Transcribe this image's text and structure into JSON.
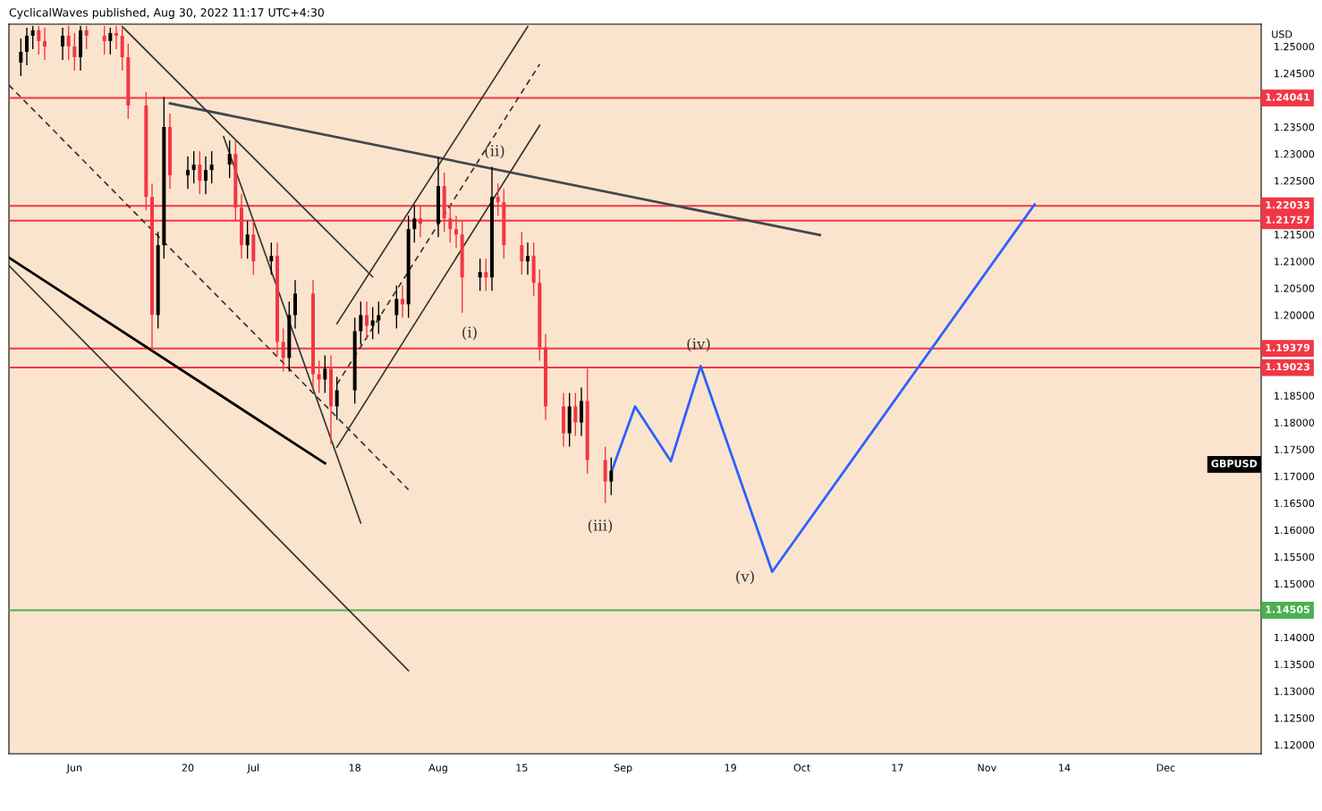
{
  "chart_data": {
    "type": "candlestick",
    "annotations": [
      "CyclicalWaves published, Aug 30, 2022 11:17 UTC+4:30",
      "USD",
      "GBPUSD",
      "(i)",
      "(ii)",
      "(iii)",
      "(iv)",
      "(v)"
    ],
    "xlim": [
      "2022-05-21",
      "2022-12-17"
    ],
    "xticks": [
      {
        "value": "2022-06-01",
        "label": "Jun"
      },
      {
        "value": "2022-06-20",
        "label": "20"
      },
      {
        "value": "2022-07-01",
        "label": "Jul"
      },
      {
        "value": "2022-07-18",
        "label": "18"
      },
      {
        "value": "2022-08-01",
        "label": "Aug"
      },
      {
        "value": "2022-08-15",
        "label": "15"
      },
      {
        "value": "2022-09-01",
        "label": "Sep"
      },
      {
        "value": "2022-09-19",
        "label": "19"
      },
      {
        "value": "2022-10-01",
        "label": "Oct"
      },
      {
        "value": "2022-10-17",
        "label": "17"
      },
      {
        "value": "2022-11-01",
        "label": "Nov"
      },
      {
        "value": "2022-11-14",
        "label": "14"
      },
      {
        "value": "2022-12-01",
        "label": "Dec"
      }
    ],
    "ylim": [
      1.11834,
      1.25415
    ],
    "yticks": [
      {
        "value": 1.12,
        "label": "1.12000"
      },
      {
        "value": 1.125,
        "label": "1.12500"
      },
      {
        "value": 1.13,
        "label": "1.13000"
      },
      {
        "value": 1.135,
        "label": "1.13500"
      },
      {
        "value": 1.14,
        "label": "1.14000"
      },
      {
        "value": 1.145,
        "label": null
      },
      {
        "value": 1.15,
        "label": "1.15000"
      },
      {
        "value": 1.155,
        "label": "1.15500"
      },
      {
        "value": 1.16,
        "label": "1.16000"
      },
      {
        "value": 1.165,
        "label": "1.16500"
      },
      {
        "value": 1.17,
        "label": "1.17000"
      },
      {
        "value": 1.175,
        "label": "1.17500"
      },
      {
        "value": 1.18,
        "label": "1.18000"
      },
      {
        "value": 1.185,
        "label": "1.18500"
      },
      {
        "value": 1.19,
        "label": null
      },
      {
        "value": 1.2,
        "label": "1.20000"
      },
      {
        "value": 1.205,
        "label": "1.20500"
      },
      {
        "value": 1.21,
        "label": "1.21000"
      },
      {
        "value": 1.215,
        "label": "1.21500"
      },
      {
        "value": 1.22,
        "label": null
      },
      {
        "value": 1.225,
        "label": "1.22500"
      },
      {
        "value": 1.23,
        "label": "1.23000"
      },
      {
        "value": 1.235,
        "label": "1.23500"
      },
      {
        "value": 1.24,
        "label": null
      },
      {
        "value": 1.245,
        "label": "1.24500"
      },
      {
        "value": 1.25,
        "label": "1.25000"
      }
    ],
    "grid": false,
    "legend": false,
    "ref_lines": [
      {
        "axis": "y",
        "value": 1.24041,
        "label": "1.24041",
        "color": "#f23645"
      },
      {
        "axis": "y",
        "value": 1.22033,
        "label": "1.22033",
        "color": "#f23645"
      },
      {
        "axis": "y",
        "value": 1.21757,
        "label": "1.21757",
        "color": "#f23645"
      },
      {
        "axis": "y",
        "value": 1.19379,
        "label": "1.19379",
        "color": "#f23645"
      },
      {
        "axis": "y",
        "value": 1.19023,
        "label": "1.19023",
        "color": "#f23645"
      },
      {
        "axis": "y",
        "value": 1.14505,
        "label": "1.14505",
        "color": "#4caf50"
      }
    ],
    "series": [
      {
        "color": "#000000",
        "x": [
          "2022-05-23",
          "2022-05-24",
          "2022-05-25",
          "2022-05-30",
          "2022-06-02",
          "2022-06-07",
          "2022-06-15",
          "2022-06-16",
          "2022-06-20",
          "2022-06-21",
          "2022-06-23",
          "2022-06-24",
          "2022-06-27",
          "2022-06-30",
          "2022-07-04",
          "2022-07-07",
          "2022-07-08",
          "2022-07-13",
          "2022-07-15",
          "2022-07-18",
          "2022-07-19",
          "2022-07-21",
          "2022-07-22",
          "2022-07-25",
          "2022-07-27",
          "2022-07-28",
          "2022-08-01",
          "2022-08-08",
          "2022-08-10",
          "2022-08-16",
          "2022-08-23",
          "2022-08-25",
          "2022-08-30"
        ],
        "ohlc": [
          [
            1.247,
            1.2515,
            1.2445,
            1.249
          ],
          [
            1.249,
            1.2535,
            1.2465,
            1.252
          ],
          [
            1.252,
            1.2538,
            1.2495,
            1.253
          ],
          [
            1.25,
            1.2535,
            1.2475,
            1.252
          ],
          [
            1.248,
            1.2538,
            1.2455,
            1.253
          ],
          [
            1.251,
            1.2535,
            1.2485,
            1.2525
          ],
          [
            1.2,
            1.2155,
            1.1975,
            1.213
          ],
          [
            1.213,
            1.2406,
            1.2105,
            1.235
          ],
          [
            1.226,
            1.2295,
            1.2235,
            1.227
          ],
          [
            1.227,
            1.2305,
            1.2245,
            1.228
          ],
          [
            1.225,
            1.2295,
            1.2225,
            1.227
          ],
          [
            1.227,
            1.2305,
            1.2245,
            1.228
          ],
          [
            1.228,
            1.2325,
            1.2255,
            1.23
          ],
          [
            1.213,
            1.2175,
            1.2105,
            1.215
          ],
          [
            1.21,
            1.2135,
            1.2075,
            1.211
          ],
          [
            1.192,
            1.2025,
            1.1895,
            1.2
          ],
          [
            1.2,
            1.2065,
            1.1975,
            1.204
          ],
          [
            1.188,
            1.1925,
            1.1855,
            1.19
          ],
          [
            1.183,
            1.1885,
            1.1805,
            1.186
          ],
          [
            1.186,
            1.1995,
            1.1835,
            1.197
          ],
          [
            1.197,
            1.2025,
            1.1945,
            1.2
          ],
          [
            1.198,
            1.2015,
            1.1955,
            1.199
          ],
          [
            1.199,
            1.2025,
            1.1965,
            1.2
          ],
          [
            1.2,
            1.2055,
            1.1975,
            1.203
          ],
          [
            1.202,
            1.2185,
            1.1995,
            1.216
          ],
          [
            1.216,
            1.2205,
            1.2135,
            1.218
          ],
          [
            1.217,
            1.2294,
            1.2145,
            1.224
          ],
          [
            1.207,
            1.2105,
            1.2045,
            1.208
          ],
          [
            1.207,
            1.2276,
            1.2045,
            1.222
          ],
          [
            1.21,
            1.2135,
            1.2075,
            1.211
          ],
          [
            1.178,
            1.1855,
            1.1755,
            1.183
          ],
          [
            1.18,
            1.1865,
            1.1775,
            1.184
          ],
          [
            1.169,
            1.1735,
            1.1665,
            1.171
          ]
        ]
      },
      {
        "color": "#f23645",
        "x": [
          "2022-05-26",
          "2022-05-27",
          "2022-05-31",
          "2022-06-01",
          "2022-06-03",
          "2022-06-06",
          "2022-06-08",
          "2022-06-09",
          "2022-06-10",
          "2022-06-13",
          "2022-06-14",
          "2022-06-17",
          "2022-06-22",
          "2022-06-28",
          "2022-06-29",
          "2022-07-01",
          "2022-07-05",
          "2022-07-06",
          "2022-07-11",
          "2022-07-12",
          "2022-07-14",
          "2022-07-20",
          "2022-07-26",
          "2022-07-29",
          "2022-08-02",
          "2022-08-03",
          "2022-08-04",
          "2022-08-05",
          "2022-08-09",
          "2022-08-11",
          "2022-08-12",
          "2022-08-15",
          "2022-08-17",
          "2022-08-18",
          "2022-08-19",
          "2022-08-22",
          "2022-08-24",
          "2022-08-26",
          "2022-08-29"
        ],
        "ohlc": [
          [
            1.253,
            1.2538,
            1.2485,
            1.251
          ],
          [
            1.251,
            1.2535,
            1.2475,
            1.25
          ],
          [
            1.252,
            1.2538,
            1.2475,
            1.25
          ],
          [
            1.25,
            1.2525,
            1.2455,
            1.248
          ],
          [
            1.253,
            1.2538,
            1.2495,
            1.252
          ],
          [
            1.252,
            1.2538,
            1.2485,
            1.251
          ],
          [
            1.2525,
            1.2538,
            1.2495,
            1.252
          ],
          [
            1.252,
            1.2538,
            1.2455,
            1.248
          ],
          [
            1.248,
            1.2505,
            1.2365,
            1.239
          ],
          [
            1.239,
            1.2415,
            1.2195,
            1.222
          ],
          [
            1.222,
            1.2245,
            1.1934,
            1.2
          ],
          [
            1.235,
            1.2375,
            1.2235,
            1.226
          ],
          [
            1.228,
            1.2305,
            1.2225,
            1.225
          ],
          [
            1.23,
            1.2325,
            1.2175,
            1.22
          ],
          [
            1.22,
            1.2225,
            1.2105,
            1.213
          ],
          [
            1.215,
            1.2175,
            1.2075,
            1.21
          ],
          [
            1.211,
            1.2135,
            1.1925,
            1.195
          ],
          [
            1.195,
            1.1975,
            1.1895,
            1.192
          ],
          [
            1.204,
            1.2065,
            1.1865,
            1.189
          ],
          [
            1.189,
            1.1915,
            1.1855,
            1.188
          ],
          [
            1.19,
            1.1925,
            1.176,
            1.183
          ],
          [
            1.2,
            1.2025,
            1.1955,
            1.198
          ],
          [
            1.203,
            1.2055,
            1.1995,
            1.202
          ],
          [
            1.218,
            1.2205,
            1.2145,
            1.217
          ],
          [
            1.224,
            1.2265,
            1.2155,
            1.218
          ],
          [
            1.218,
            1.2205,
            1.2135,
            1.216
          ],
          [
            1.216,
            1.2185,
            1.2125,
            1.215
          ],
          [
            1.215,
            1.2175,
            1.2004,
            1.207
          ],
          [
            1.208,
            1.2105,
            1.2045,
            1.207
          ],
          [
            1.222,
            1.2245,
            1.2185,
            1.221
          ],
          [
            1.221,
            1.2235,
            1.2105,
            1.213
          ],
          [
            1.213,
            1.2155,
            1.2075,
            1.21
          ],
          [
            1.211,
            1.2135,
            1.2035,
            1.206
          ],
          [
            1.206,
            1.2085,
            1.1915,
            1.194
          ],
          [
            1.194,
            1.1965,
            1.1805,
            1.183
          ],
          [
            1.183,
            1.1855,
            1.1755,
            1.178
          ],
          [
            1.183,
            1.1855,
            1.1775,
            1.18
          ],
          [
            1.184,
            1.19,
            1.1705,
            1.173
          ],
          [
            1.173,
            1.1755,
            1.165,
            1.169
          ]
        ]
      },
      {
        "type": "line",
        "color": "#2962ff",
        "x": [
          "2022-08-30",
          "2022-09-03",
          "2022-09-09",
          "2022-09-14",
          "2022-09-26",
          "2022-11-09"
        ],
        "values": [
          1.1707,
          1.183,
          1.1728,
          1.1905,
          1.1522,
          1.2206
        ]
      },
      {
        "type": "line",
        "color": "#434651",
        "x": [
          "2022-06-17",
          "2022-10-04"
        ],
        "values": [
          1.2394,
          1.2149
        ]
      },
      {
        "type": "line",
        "color": "#000000",
        "x": [
          "2022-05-21",
          "2022-07-13"
        ],
        "values": [
          1.2107,
          1.1724
        ]
      },
      {
        "type": "line",
        "color": "#333333",
        "x": [
          "2022-06-09",
          "2022-07-21"
        ],
        "values": [
          1.2537,
          1.2071
        ]
      },
      {
        "type": "line",
        "color": "#333333",
        "x": [
          "2022-05-21",
          "2022-07-27"
        ],
        "values": [
          1.2092,
          1.1338
        ]
      },
      {
        "type": "line",
        "color": "#333333",
        "line_style": "dashed",
        "x": [
          "2022-05-21",
          "2022-07-27"
        ],
        "values": [
          1.2428,
          1.1675
        ]
      },
      {
        "type": "line",
        "color": "#333333",
        "x": [
          "2022-06-26",
          "2022-07-19"
        ],
        "values": [
          1.2332,
          1.1613
        ]
      },
      {
        "type": "line",
        "color": "#333333",
        "x": [
          "2022-07-15",
          "2022-08-16"
        ],
        "values": [
          1.1984,
          1.2537
        ]
      },
      {
        "type": "line",
        "color": "#333333",
        "x": [
          "2022-07-15",
          "2022-08-18"
        ],
        "values": [
          1.1754,
          1.2353
        ]
      },
      {
        "type": "line",
        "color": "#333333",
        "line_style": "dashed",
        "x": [
          "2022-07-15",
          "2022-08-18"
        ],
        "values": [
          1.1871,
          1.2467
        ]
      }
    ]
  }
}
